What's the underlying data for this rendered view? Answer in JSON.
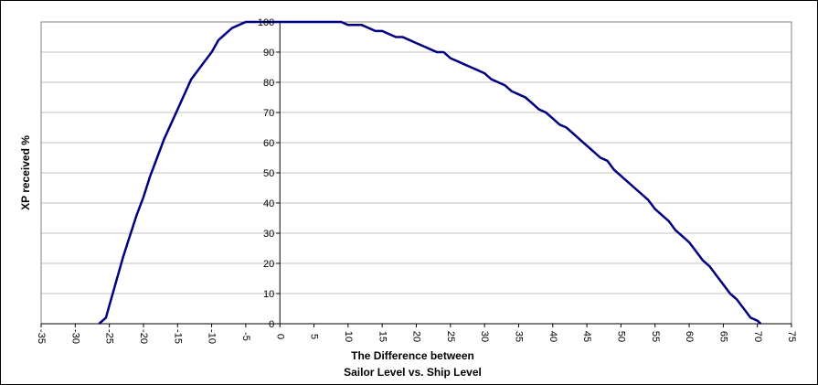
{
  "chart_data": {
    "type": "line",
    "title": "",
    "xlabel_line1": "The Difference between",
    "xlabel_line2": "Sailor Level vs. Ship Level",
    "ylabel": "XP received %",
    "xlim": [
      -35,
      75
    ],
    "ylim": [
      0,
      100
    ],
    "x_ticks": [
      -35,
      -30,
      -25,
      -20,
      -15,
      -10,
      -5,
      0,
      5,
      10,
      15,
      20,
      25,
      30,
      35,
      40,
      45,
      50,
      55,
      60,
      65,
      70,
      75
    ],
    "y_ticks": [
      0,
      10,
      20,
      30,
      40,
      50,
      60,
      70,
      80,
      90,
      100
    ],
    "grid": "horizontal",
    "line_color": "#000080",
    "series": [
      {
        "x": [
          -26.5,
          -26,
          -25.5,
          -25,
          -24,
          -23,
          -22,
          -21,
          -20,
          -19,
          -18,
          -17,
          -16,
          -15,
          -14,
          -13,
          -12,
          -11,
          -10,
          -9,
          -8,
          -7,
          -6,
          -5,
          -4,
          -3,
          -2,
          -1,
          0,
          1,
          2,
          3,
          4,
          5,
          6,
          7,
          8,
          9,
          10,
          11,
          12,
          13,
          14,
          15,
          16,
          17,
          18,
          19,
          20,
          21,
          22,
          23,
          24,
          25,
          26,
          27,
          28,
          29,
          30,
          31,
          32,
          33,
          34,
          35,
          36,
          37,
          38,
          39,
          40,
          41,
          42,
          43,
          44,
          45,
          46,
          47,
          48,
          49,
          50,
          51,
          52,
          53,
          54,
          55,
          56,
          57,
          58,
          59,
          60,
          61,
          62,
          63,
          64,
          65,
          66,
          67,
          68,
          69,
          70,
          70.5
        ],
        "y": [
          0,
          1,
          2,
          6,
          14,
          22,
          29,
          36,
          42,
          49,
          55,
          61,
          66,
          71,
          76,
          81,
          84,
          87,
          90,
          94,
          96,
          98,
          99,
          100,
          100,
          100,
          100,
          100,
          100,
          100,
          100,
          100,
          100,
          100,
          100,
          100,
          100,
          100,
          99,
          99,
          99,
          98,
          97,
          97,
          96,
          95,
          95,
          94,
          93,
          92,
          91,
          90,
          90,
          88,
          87,
          86,
          85,
          84,
          83,
          81,
          80,
          79,
          77,
          76,
          75,
          73,
          71,
          70,
          68,
          66,
          65,
          63,
          61,
          59,
          57,
          55,
          54,
          51,
          49,
          47,
          45,
          43,
          41,
          38,
          36,
          34,
          31,
          29,
          27,
          24,
          21,
          19,
          16,
          13,
          10,
          8,
          5,
          2,
          1,
          0
        ]
      }
    ]
  }
}
